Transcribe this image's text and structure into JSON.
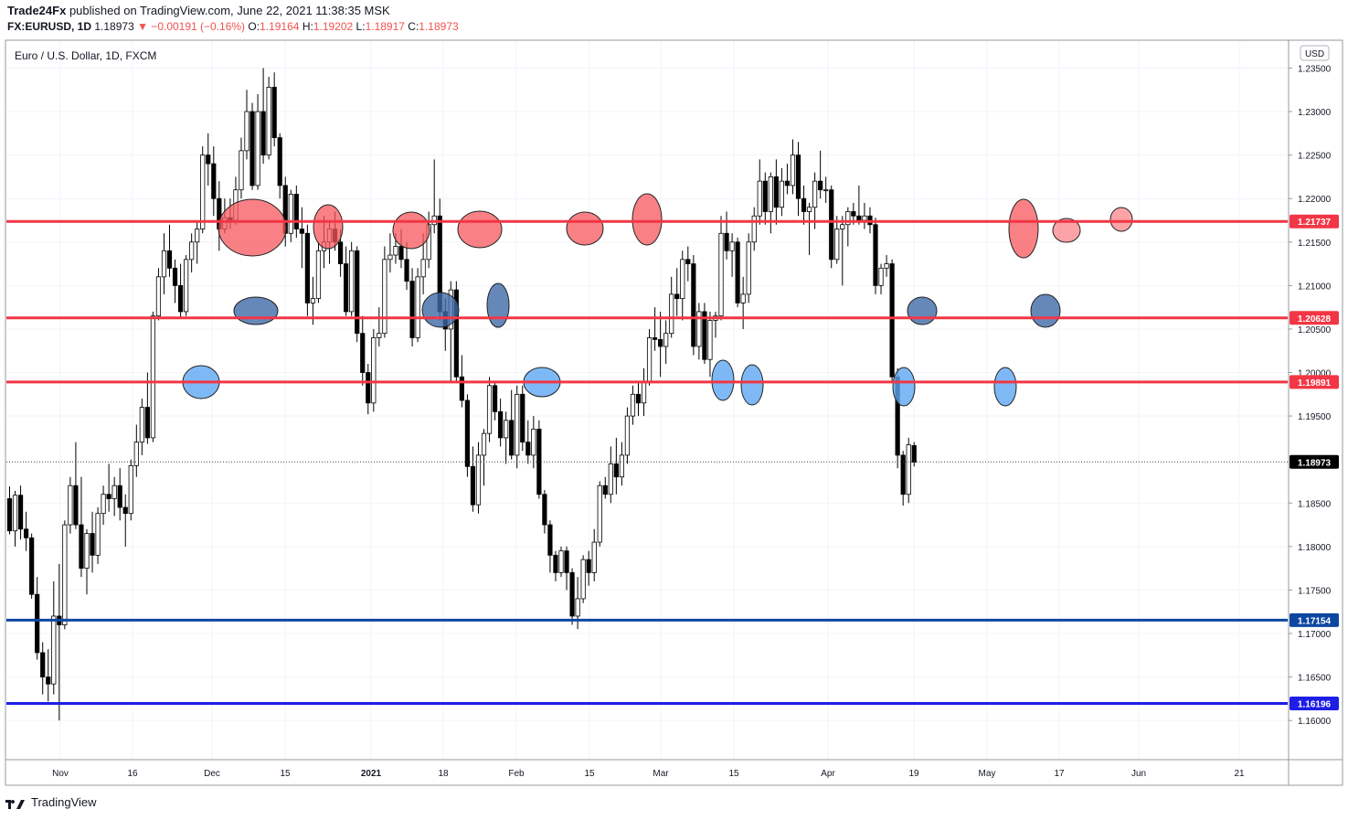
{
  "header": {
    "publisher": "Trade24Fx",
    "published_text": "published on TradingView.com, June 22, 2021 11:38:35 MSK",
    "symbol": "FX:EURUSD, 1D",
    "last": "1.18973",
    "change": "▼ −0.00191 (−0.16%)",
    "o_label": "O:",
    "o": "1.19164",
    "h_label": "H:",
    "h": "1.19202",
    "l_label": "L:",
    "l": "1.18917",
    "c_label": "C:",
    "c": "1.18973"
  },
  "footer": {
    "brand": "TradingView"
  },
  "chart_data": {
    "type": "candlestick",
    "title": "Euro / U.S. Dollar, 1D, FXCM",
    "currency": "USD",
    "ylim": [
      1.1555,
      1.2382
    ],
    "y_ticks": [
      "1.23500",
      "1.23000",
      "1.22500",
      "1.22000",
      "1.21500",
      "1.21000",
      "1.20500",
      "1.20000",
      "1.19500",
      "1.18500",
      "1.18000",
      "1.17500",
      "1.17000",
      "1.16500",
      "1.16000"
    ],
    "x_ticks": [
      "Nov",
      "16",
      "Dec",
      "15",
      "2021",
      "18",
      "Feb",
      "15",
      "Mar",
      "15",
      "Apr",
      "19",
      "May",
      "17",
      "Jun",
      "21"
    ],
    "horizontal_levels": [
      {
        "value": 1.21737,
        "label": "1.21737",
        "color": "#f23645"
      },
      {
        "value": 1.20628,
        "label": "1.20628",
        "color": "#f23645"
      },
      {
        "value": 1.19891,
        "label": "1.19891",
        "color": "#f23645"
      },
      {
        "value": 1.17154,
        "label": "1.17154",
        "color": "#0d47a1"
      },
      {
        "value": 1.16196,
        "label": "1.16196",
        "color": "#1e1ee6"
      }
    ],
    "last_price": {
      "value": 1.18973,
      "label": "1.18973"
    },
    "candles": [
      {
        "o": 1.1855,
        "h": 1.1869,
        "l": 1.1814,
        "c": 1.1818
      },
      {
        "o": 1.1818,
        "h": 1.1864,
        "l": 1.18,
        "c": 1.1859
      },
      {
        "o": 1.1859,
        "h": 1.187,
        "l": 1.1808,
        "c": 1.182
      },
      {
        "o": 1.182,
        "h": 1.184,
        "l": 1.1795,
        "c": 1.181
      },
      {
        "o": 1.181,
        "h": 1.1815,
        "l": 1.174,
        "c": 1.1745
      },
      {
        "o": 1.1745,
        "h": 1.1765,
        "l": 1.167,
        "c": 1.1678
      },
      {
        "o": 1.1678,
        "h": 1.169,
        "l": 1.163,
        "c": 1.165
      },
      {
        "o": 1.165,
        "h": 1.1682,
        "l": 1.1622,
        "c": 1.1642
      },
      {
        "o": 1.1642,
        "h": 1.176,
        "l": 1.163,
        "c": 1.172
      },
      {
        "o": 1.172,
        "h": 1.178,
        "l": 1.16,
        "c": 1.171
      },
      {
        "o": 1.171,
        "h": 1.183,
        "l": 1.1705,
        "c": 1.1825
      },
      {
        "o": 1.1825,
        "h": 1.188,
        "l": 1.1815,
        "c": 1.187
      },
      {
        "o": 1.187,
        "h": 1.192,
        "l": 1.182,
        "c": 1.1825
      },
      {
        "o": 1.1825,
        "h": 1.188,
        "l": 1.1765,
        "c": 1.1775
      },
      {
        "o": 1.1775,
        "h": 1.182,
        "l": 1.1745,
        "c": 1.1815
      },
      {
        "o": 1.1815,
        "h": 1.184,
        "l": 1.177,
        "c": 1.179
      },
      {
        "o": 1.179,
        "h": 1.1845,
        "l": 1.178,
        "c": 1.1838
      },
      {
        "o": 1.1838,
        "h": 1.187,
        "l": 1.1825,
        "c": 1.186
      },
      {
        "o": 1.186,
        "h": 1.1895,
        "l": 1.184,
        "c": 1.1855
      },
      {
        "o": 1.1855,
        "h": 1.188,
        "l": 1.1835,
        "c": 1.187
      },
      {
        "o": 1.187,
        "h": 1.189,
        "l": 1.183,
        "c": 1.1845
      },
      {
        "o": 1.1845,
        "h": 1.186,
        "l": 1.18,
        "c": 1.1838
      },
      {
        "o": 1.1838,
        "h": 1.19,
        "l": 1.183,
        "c": 1.1893
      },
      {
        "o": 1.1893,
        "h": 1.194,
        "l": 1.188,
        "c": 1.192
      },
      {
        "o": 1.192,
        "h": 1.197,
        "l": 1.1905,
        "c": 1.196
      },
      {
        "o": 1.196,
        "h": 1.2,
        "l": 1.1918,
        "c": 1.1925
      },
      {
        "o": 1.1925,
        "h": 1.207,
        "l": 1.192,
        "c": 1.2065
      },
      {
        "o": 1.2065,
        "h": 1.212,
        "l": 1.206,
        "c": 1.211
      },
      {
        "o": 1.211,
        "h": 1.216,
        "l": 1.209,
        "c": 1.214
      },
      {
        "o": 1.214,
        "h": 1.217,
        "l": 1.211,
        "c": 1.212
      },
      {
        "o": 1.212,
        "h": 1.213,
        "l": 1.208,
        "c": 1.21
      },
      {
        "o": 1.21,
        "h": 1.2125,
        "l": 1.2062,
        "c": 1.207
      },
      {
        "o": 1.207,
        "h": 1.2135,
        "l": 1.2065,
        "c": 1.213
      },
      {
        "o": 1.213,
        "h": 1.216,
        "l": 1.2115,
        "c": 1.215
      },
      {
        "o": 1.215,
        "h": 1.2175,
        "l": 1.2125,
        "c": 1.2165
      },
      {
        "o": 1.2165,
        "h": 1.226,
        "l": 1.216,
        "c": 1.225
      },
      {
        "o": 1.225,
        "h": 1.2275,
        "l": 1.2215,
        "c": 1.224
      },
      {
        "o": 1.224,
        "h": 1.226,
        "l": 1.218,
        "c": 1.22
      },
      {
        "o": 1.22,
        "h": 1.222,
        "l": 1.214,
        "c": 1.2165
      },
      {
        "o": 1.2165,
        "h": 1.22,
        "l": 1.216,
        "c": 1.2178
      },
      {
        "o": 1.2178,
        "h": 1.22,
        "l": 1.2165,
        "c": 1.2175
      },
      {
        "o": 1.2175,
        "h": 1.2225,
        "l": 1.217,
        "c": 1.221
      },
      {
        "o": 1.221,
        "h": 1.227,
        "l": 1.22,
        "c": 1.2255
      },
      {
        "o": 1.2255,
        "h": 1.2325,
        "l": 1.2245,
        "c": 1.23
      },
      {
        "o": 1.23,
        "h": 1.231,
        "l": 1.221,
        "c": 1.2215
      },
      {
        "o": 1.2215,
        "h": 1.232,
        "l": 1.221,
        "c": 1.23
      },
      {
        "o": 1.23,
        "h": 1.235,
        "l": 1.224,
        "c": 1.225
      },
      {
        "o": 1.225,
        "h": 1.234,
        "l": 1.2245,
        "c": 1.2328
      },
      {
        "o": 1.2328,
        "h": 1.2345,
        "l": 1.226,
        "c": 1.227
      },
      {
        "o": 1.227,
        "h": 1.2275,
        "l": 1.22,
        "c": 1.2215
      },
      {
        "o": 1.2215,
        "h": 1.2225,
        "l": 1.2145,
        "c": 1.216
      },
      {
        "o": 1.216,
        "h": 1.221,
        "l": 1.215,
        "c": 1.2205
      },
      {
        "o": 1.2205,
        "h": 1.2215,
        "l": 1.2155,
        "c": 1.2165
      },
      {
        "o": 1.2165,
        "h": 1.219,
        "l": 1.212,
        "c": 1.216
      },
      {
        "o": 1.216,
        "h": 1.217,
        "l": 1.2065,
        "c": 1.208
      },
      {
        "o": 1.208,
        "h": 1.211,
        "l": 1.2055,
        "c": 1.2085
      },
      {
        "o": 1.2085,
        "h": 1.215,
        "l": 1.208,
        "c": 1.214
      },
      {
        "o": 1.214,
        "h": 1.218,
        "l": 1.212,
        "c": 1.215
      },
      {
        "o": 1.215,
        "h": 1.2175,
        "l": 1.2125,
        "c": 1.2165
      },
      {
        "o": 1.2165,
        "h": 1.2185,
        "l": 1.214,
        "c": 1.215
      },
      {
        "o": 1.215,
        "h": 1.2165,
        "l": 1.211,
        "c": 1.2125
      },
      {
        "o": 1.2125,
        "h": 1.2145,
        "l": 1.2065,
        "c": 1.207
      },
      {
        "o": 1.207,
        "h": 1.215,
        "l": 1.2065,
        "c": 1.214
      },
      {
        "o": 1.214,
        "h": 1.2145,
        "l": 1.2035,
        "c": 1.2045
      },
      {
        "o": 1.2045,
        "h": 1.2065,
        "l": 1.1985,
        "c": 1.2
      },
      {
        "o": 1.2,
        "h": 1.201,
        "l": 1.1952,
        "c": 1.1965
      },
      {
        "o": 1.1965,
        "h": 1.205,
        "l": 1.1955,
        "c": 1.204
      },
      {
        "o": 1.204,
        "h": 1.2075,
        "l": 1.203,
        "c": 1.2045
      },
      {
        "o": 1.2045,
        "h": 1.2145,
        "l": 1.204,
        "c": 1.213
      },
      {
        "o": 1.213,
        "h": 1.216,
        "l": 1.2115,
        "c": 1.2135
      },
      {
        "o": 1.2135,
        "h": 1.216,
        "l": 1.2125,
        "c": 1.2145
      },
      {
        "o": 1.2145,
        "h": 1.2165,
        "l": 1.212,
        "c": 1.213
      },
      {
        "o": 1.213,
        "h": 1.215,
        "l": 1.2095,
        "c": 1.2105
      },
      {
        "o": 1.2105,
        "h": 1.212,
        "l": 1.203,
        "c": 1.204
      },
      {
        "o": 1.204,
        "h": 1.212,
        "l": 1.2035,
        "c": 1.211
      },
      {
        "o": 1.211,
        "h": 1.216,
        "l": 1.209,
        "c": 1.213
      },
      {
        "o": 1.213,
        "h": 1.2185,
        "l": 1.212,
        "c": 1.217
      },
      {
        "o": 1.217,
        "h": 1.2245,
        "l": 1.216,
        "c": 1.218
      },
      {
        "o": 1.218,
        "h": 1.22,
        "l": 1.206,
        "c": 1.207
      },
      {
        "o": 1.207,
        "h": 1.2085,
        "l": 1.2025,
        "c": 1.205
      },
      {
        "o": 1.205,
        "h": 1.2105,
        "l": 1.199,
        "c": 1.2095
      },
      {
        "o": 1.2095,
        "h": 1.2105,
        "l": 1.199,
        "c": 1.1995
      },
      {
        "o": 1.1995,
        "h": 1.202,
        "l": 1.196,
        "c": 1.1968
      },
      {
        "o": 1.1968,
        "h": 1.1975,
        "l": 1.188,
        "c": 1.1892
      },
      {
        "o": 1.1892,
        "h": 1.1915,
        "l": 1.184,
        "c": 1.1848
      },
      {
        "o": 1.1848,
        "h": 1.192,
        "l": 1.1838,
        "c": 1.1905
      },
      {
        "o": 1.1905,
        "h": 1.1935,
        "l": 1.187,
        "c": 1.193
      },
      {
        "o": 1.193,
        "h": 1.1995,
        "l": 1.192,
        "c": 1.1985
      },
      {
        "o": 1.1985,
        "h": 1.199,
        "l": 1.1945,
        "c": 1.1955
      },
      {
        "o": 1.1955,
        "h": 1.197,
        "l": 1.1915,
        "c": 1.1925
      },
      {
        "o": 1.1925,
        "h": 1.1955,
        "l": 1.1895,
        "c": 1.1945
      },
      {
        "o": 1.1945,
        "h": 1.198,
        "l": 1.19,
        "c": 1.1905
      },
      {
        "o": 1.1905,
        "h": 1.1985,
        "l": 1.189,
        "c": 1.1975
      },
      {
        "o": 1.1975,
        "h": 1.1985,
        "l": 1.191,
        "c": 1.192
      },
      {
        "o": 1.192,
        "h": 1.1945,
        "l": 1.1895,
        "c": 1.1905
      },
      {
        "o": 1.1905,
        "h": 1.195,
        "l": 1.189,
        "c": 1.1935
      },
      {
        "o": 1.1935,
        "h": 1.1945,
        "l": 1.1855,
        "c": 1.186
      },
      {
        "o": 1.186,
        "h": 1.1865,
        "l": 1.1815,
        "c": 1.1825
      },
      {
        "o": 1.1825,
        "h": 1.183,
        "l": 1.177,
        "c": 1.179
      },
      {
        "o": 1.179,
        "h": 1.1795,
        "l": 1.176,
        "c": 1.177
      },
      {
        "o": 1.177,
        "h": 1.18,
        "l": 1.1765,
        "c": 1.1795
      },
      {
        "o": 1.1795,
        "h": 1.18,
        "l": 1.175,
        "c": 1.177
      },
      {
        "o": 1.177,
        "h": 1.1775,
        "l": 1.171,
        "c": 1.172
      },
      {
        "o": 1.172,
        "h": 1.1765,
        "l": 1.1705,
        "c": 1.174
      },
      {
        "o": 1.174,
        "h": 1.179,
        "l": 1.1735,
        "c": 1.1785
      },
      {
        "o": 1.1785,
        "h": 1.1795,
        "l": 1.1755,
        "c": 1.177
      },
      {
        "o": 1.177,
        "h": 1.182,
        "l": 1.176,
        "c": 1.1805
      },
      {
        "o": 1.1805,
        "h": 1.1875,
        "l": 1.18,
        "c": 1.187
      },
      {
        "o": 1.187,
        "h": 1.188,
        "l": 1.1855,
        "c": 1.186
      },
      {
        "o": 1.186,
        "h": 1.1915,
        "l": 1.185,
        "c": 1.1895
      },
      {
        "o": 1.1895,
        "h": 1.1925,
        "l": 1.186,
        "c": 1.188
      },
      {
        "o": 1.188,
        "h": 1.192,
        "l": 1.187,
        "c": 1.1905
      },
      {
        "o": 1.1905,
        "h": 1.196,
        "l": 1.1895,
        "c": 1.195
      },
      {
        "o": 1.195,
        "h": 1.1985,
        "l": 1.194,
        "c": 1.1975
      },
      {
        "o": 1.1975,
        "h": 1.199,
        "l": 1.195,
        "c": 1.1965
      },
      {
        "o": 1.1965,
        "h": 1.2005,
        "l": 1.195,
        "c": 1.199
      },
      {
        "o": 1.199,
        "h": 1.205,
        "l": 1.1985,
        "c": 1.204
      },
      {
        "o": 1.204,
        "h": 1.2075,
        "l": 1.2025,
        "c": 1.2038
      },
      {
        "o": 1.2038,
        "h": 1.207,
        "l": 1.1995,
        "c": 1.203
      },
      {
        "o": 1.203,
        "h": 1.206,
        "l": 1.201,
        "c": 1.2045
      },
      {
        "o": 1.2045,
        "h": 1.211,
        "l": 1.204,
        "c": 1.209
      },
      {
        "o": 1.209,
        "h": 1.212,
        "l": 1.2065,
        "c": 1.2085
      },
      {
        "o": 1.2085,
        "h": 1.214,
        "l": 1.206,
        "c": 1.213
      },
      {
        "o": 1.213,
        "h": 1.2145,
        "l": 1.2105,
        "c": 1.2125
      },
      {
        "o": 1.2125,
        "h": 1.2135,
        "l": 1.202,
        "c": 1.203
      },
      {
        "o": 1.203,
        "h": 1.208,
        "l": 1.2015,
        "c": 1.207
      },
      {
        "o": 1.207,
        "h": 1.208,
        "l": 1.201,
        "c": 1.2015
      },
      {
        "o": 1.2015,
        "h": 1.207,
        "l": 1.1995,
        "c": 1.206
      },
      {
        "o": 1.206,
        "h": 1.207,
        "l": 1.204,
        "c": 1.2065
      },
      {
        "o": 1.2065,
        "h": 1.218,
        "l": 1.206,
        "c": 1.216
      },
      {
        "o": 1.216,
        "h": 1.2185,
        "l": 1.213,
        "c": 1.214
      },
      {
        "o": 1.214,
        "h": 1.216,
        "l": 1.211,
        "c": 1.215
      },
      {
        "o": 1.215,
        "h": 1.2155,
        "l": 1.2075,
        "c": 1.208
      },
      {
        "o": 1.208,
        "h": 1.211,
        "l": 1.205,
        "c": 1.209
      },
      {
        "o": 1.209,
        "h": 1.216,
        "l": 1.208,
        "c": 1.215
      },
      {
        "o": 1.215,
        "h": 1.219,
        "l": 1.214,
        "c": 1.218
      },
      {
        "o": 1.218,
        "h": 1.2245,
        "l": 1.217,
        "c": 1.222
      },
      {
        "o": 1.222,
        "h": 1.223,
        "l": 1.217,
        "c": 1.2185
      },
      {
        "o": 1.2185,
        "h": 1.223,
        "l": 1.216,
        "c": 1.2225
      },
      {
        "o": 1.2225,
        "h": 1.2245,
        "l": 1.217,
        "c": 1.219
      },
      {
        "o": 1.219,
        "h": 1.2235,
        "l": 1.218,
        "c": 1.222
      },
      {
        "o": 1.222,
        "h": 1.224,
        "l": 1.2205,
        "c": 1.2215
      },
      {
        "o": 1.2215,
        "h": 1.2268,
        "l": 1.2205,
        "c": 1.225
      },
      {
        "o": 1.225,
        "h": 1.2265,
        "l": 1.218,
        "c": 1.22
      },
      {
        "o": 1.22,
        "h": 1.2215,
        "l": 1.217,
        "c": 1.2185
      },
      {
        "o": 1.2185,
        "h": 1.2195,
        "l": 1.2135,
        "c": 1.219
      },
      {
        "o": 1.219,
        "h": 1.223,
        "l": 1.2165,
        "c": 1.222
      },
      {
        "o": 1.222,
        "h": 1.2255,
        "l": 1.22,
        "c": 1.221
      },
      {
        "o": 1.221,
        "h": 1.2225,
        "l": 1.2195,
        "c": 1.221
      },
      {
        "o": 1.221,
        "h": 1.2215,
        "l": 1.212,
        "c": 1.213
      },
      {
        "o": 1.213,
        "h": 1.218,
        "l": 1.2125,
        "c": 1.2165
      },
      {
        "o": 1.2165,
        "h": 1.218,
        "l": 1.21,
        "c": 1.217
      },
      {
        "o": 1.217,
        "h": 1.219,
        "l": 1.2145,
        "c": 1.2185
      },
      {
        "o": 1.2185,
        "h": 1.2195,
        "l": 1.217,
        "c": 1.218
      },
      {
        "o": 1.218,
        "h": 1.2215,
        "l": 1.217,
        "c": 1.2175
      },
      {
        "o": 1.2175,
        "h": 1.2195,
        "l": 1.2165,
        "c": 1.218
      },
      {
        "o": 1.218,
        "h": 1.219,
        "l": 1.216,
        "c": 1.217
      },
      {
        "o": 1.217,
        "h": 1.2178,
        "l": 1.209,
        "c": 1.21
      },
      {
        "o": 1.21,
        "h": 1.2125,
        "l": 1.209,
        "c": 1.212
      },
      {
        "o": 1.212,
        "h": 1.2135,
        "l": 1.211,
        "c": 1.2125
      },
      {
        "o": 1.2125,
        "h": 1.213,
        "l": 1.1988,
        "c": 1.1995
      },
      {
        "o": 1.1995,
        "h": 1.2005,
        "l": 1.189,
        "c": 1.1905
      },
      {
        "o": 1.1905,
        "h": 1.191,
        "l": 1.1847,
        "c": 1.186
      },
      {
        "o": 1.186,
        "h": 1.1925,
        "l": 1.185,
        "c": 1.1917
      },
      {
        "o": 1.1916,
        "h": 1.192,
        "l": 1.1892,
        "c": 1.1897
      }
    ]
  }
}
